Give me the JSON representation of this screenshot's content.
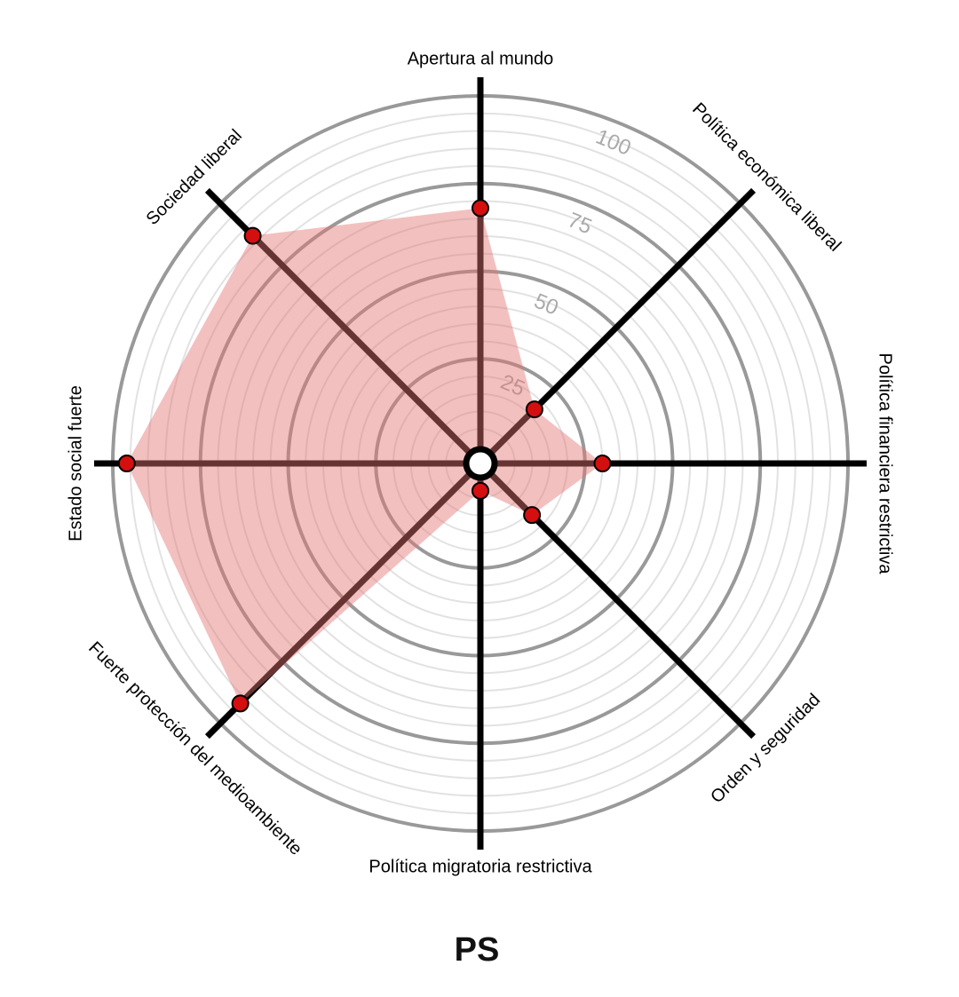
{
  "chart_data": {
    "type": "radar",
    "title": "PS",
    "categories": [
      "Apertura al mundo",
      "Política económica liberal",
      "Política financiera restrictiva",
      "Orden y seguridad",
      "Política migratoria restrictiva",
      "Fuerte protección del medioambiente",
      "Estado social fuerte",
      "Sociedad liberal"
    ],
    "values": [
      68,
      17,
      30,
      16,
      3,
      92,
      96,
      87
    ],
    "color": "#e57373",
    "ylim": [
      0,
      100
    ],
    "yticks": [
      25,
      50,
      75,
      100
    ],
    "grid": true
  }
}
